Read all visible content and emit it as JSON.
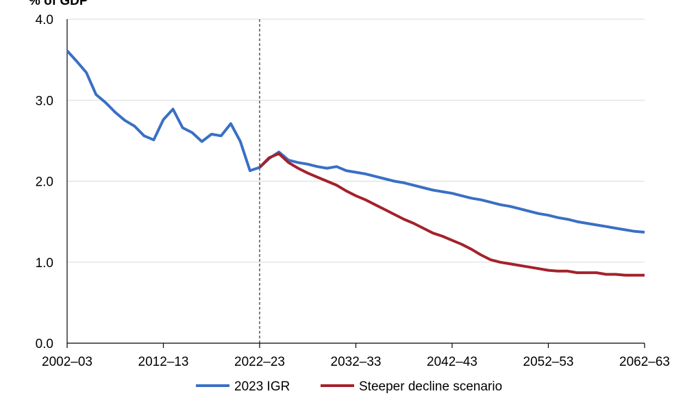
{
  "chart_data": {
    "type": "line",
    "ylabel": "% of GDP",
    "ylim": [
      0,
      4
    ],
    "yticks": [
      "0.0",
      "1.0",
      "2.0",
      "3.0",
      "4.0"
    ],
    "xlim": [
      2002,
      2062
    ],
    "xticks": [
      {
        "x": 2002,
        "label": "2002–03"
      },
      {
        "x": 2012,
        "label": "2012–13"
      },
      {
        "x": 2022,
        "label": "2022–23"
      },
      {
        "x": 2032,
        "label": "2032–33"
      },
      {
        "x": 2042,
        "label": "2042–43"
      },
      {
        "x": 2052,
        "label": "2052–53"
      },
      {
        "x": 2062,
        "label": "2062–63"
      }
    ],
    "grid": true,
    "reference_line": {
      "x": 2022,
      "style": "dashed"
    },
    "legend_position": "bottom",
    "series": [
      {
        "name": "2023 IGR",
        "color": "#3a6fc4",
        "x": [
          2002,
          2003,
          2004,
          2005,
          2006,
          2007,
          2008,
          2009,
          2010,
          2011,
          2012,
          2013,
          2014,
          2015,
          2016,
          2017,
          2018,
          2019,
          2020,
          2021,
          2022,
          2023,
          2024,
          2025,
          2026,
          2027,
          2028,
          2029,
          2030,
          2031,
          2032,
          2033,
          2034,
          2035,
          2036,
          2037,
          2038,
          2039,
          2040,
          2041,
          2042,
          2043,
          2044,
          2045,
          2046,
          2047,
          2048,
          2049,
          2050,
          2051,
          2052,
          2053,
          2054,
          2055,
          2056,
          2057,
          2058,
          2059,
          2060,
          2061,
          2062
        ],
        "values": [
          3.61,
          3.48,
          3.34,
          3.07,
          2.97,
          2.85,
          2.75,
          2.68,
          2.56,
          2.51,
          2.76,
          2.89,
          2.66,
          2.6,
          2.49,
          2.58,
          2.56,
          2.71,
          2.49,
          2.13,
          2.17,
          2.28,
          2.36,
          2.26,
          2.23,
          2.21,
          2.18,
          2.16,
          2.18,
          2.13,
          2.11,
          2.09,
          2.06,
          2.03,
          2.0,
          1.98,
          1.95,
          1.92,
          1.89,
          1.87,
          1.85,
          1.82,
          1.79,
          1.77,
          1.74,
          1.71,
          1.69,
          1.66,
          1.63,
          1.6,
          1.58,
          1.55,
          1.53,
          1.5,
          1.48,
          1.46,
          1.44,
          1.42,
          1.4,
          1.38,
          1.37
        ]
      },
      {
        "name": "Steeper decline scenario",
        "color": "#a4212b",
        "x": [
          2022,
          2023,
          2024,
          2025,
          2026,
          2027,
          2028,
          2029,
          2030,
          2031,
          2032,
          2033,
          2034,
          2035,
          2036,
          2037,
          2038,
          2039,
          2040,
          2041,
          2042,
          2043,
          2044,
          2045,
          2046,
          2047,
          2048,
          2049,
          2050,
          2051,
          2052,
          2053,
          2054,
          2055,
          2056,
          2057,
          2058,
          2059,
          2060,
          2061,
          2062
        ],
        "values": [
          2.17,
          2.29,
          2.34,
          2.23,
          2.16,
          2.1,
          2.05,
          2.0,
          1.95,
          1.88,
          1.82,
          1.77,
          1.71,
          1.65,
          1.59,
          1.53,
          1.48,
          1.42,
          1.36,
          1.32,
          1.27,
          1.22,
          1.16,
          1.09,
          1.03,
          1.0,
          0.98,
          0.96,
          0.94,
          0.92,
          0.9,
          0.89,
          0.89,
          0.87,
          0.87,
          0.87,
          0.85,
          0.85,
          0.84,
          0.84,
          0.84
        ]
      }
    ]
  }
}
